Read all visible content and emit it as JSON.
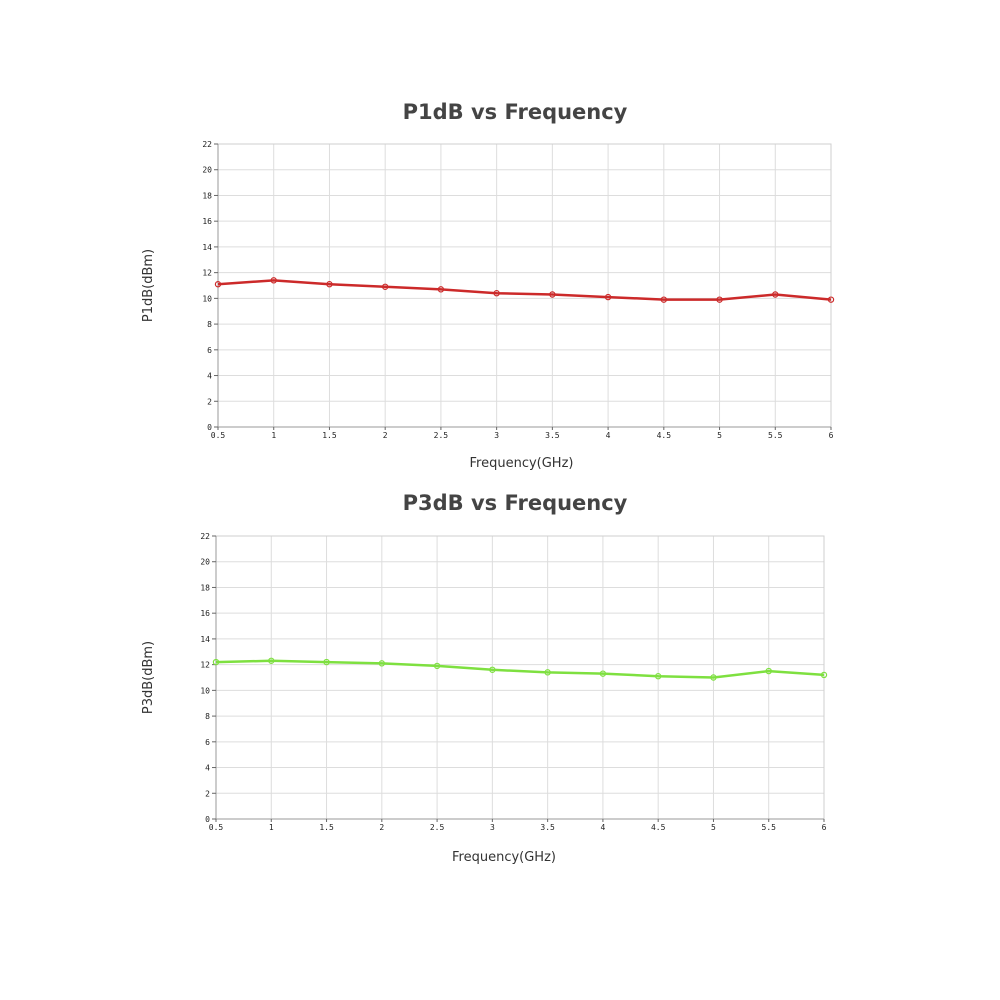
{
  "chart_data": [
    {
      "type": "line",
      "title": "P1dB vs Frequency",
      "xlabel": "Frequency(GHz)",
      "ylabel": "P1dB(dBm)",
      "xlim": [
        0.5,
        6
      ],
      "ylim": [
        0,
        22
      ],
      "x_ticks": [
        "0.5",
        "1",
        "1.5",
        "2",
        "2.5",
        "3",
        "3.5",
        "4",
        "4.5",
        "5",
        "5.5",
        "6"
      ],
      "y_ticks": [
        "0",
        "2",
        "4",
        "6",
        "8",
        "10",
        "12",
        "14",
        "16",
        "18",
        "20",
        "22"
      ],
      "grid": true,
      "series": [
        {
          "color": "#cc2a2a",
          "x": [
            0.5,
            1,
            1.5,
            2,
            2.5,
            3,
            3.5,
            4,
            4.5,
            5,
            5.5,
            6
          ],
          "values": [
            11.1,
            11.4,
            11.1,
            10.9,
            10.7,
            10.4,
            10.3,
            10.1,
            9.9,
            9.9,
            10.3,
            9.9
          ]
        }
      ]
    },
    {
      "type": "line",
      "title": "P3dB vs Frequency",
      "xlabel": "Frequency(GHz)",
      "ylabel": "P3dB(dBm)",
      "xlim": [
        0.5,
        6
      ],
      "ylim": [
        0,
        22
      ],
      "x_ticks": [
        "0.5",
        "1",
        "1.5",
        "2",
        "2.5",
        "3",
        "3.5",
        "4",
        "4.5",
        "5",
        "5.5",
        "6"
      ],
      "y_ticks": [
        "0",
        "2",
        "4",
        "6",
        "8",
        "10",
        "12",
        "14",
        "16",
        "18",
        "20",
        "22"
      ],
      "grid": true,
      "series": [
        {
          "color": "#7ee040",
          "x": [
            0.5,
            1,
            1.5,
            2,
            2.5,
            3,
            3.5,
            4,
            4.5,
            5,
            5.5,
            6
          ],
          "values": [
            12.2,
            12.3,
            12.2,
            12.1,
            11.9,
            11.6,
            11.4,
            11.3,
            11.1,
            11.0,
            11.5,
            11.2
          ]
        }
      ]
    }
  ]
}
